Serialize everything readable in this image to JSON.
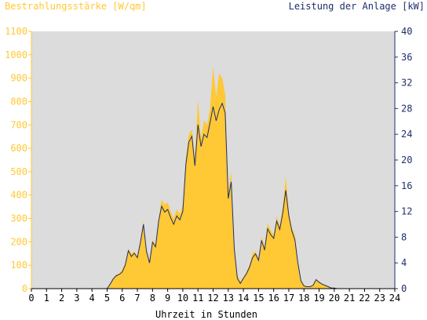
{
  "chart_data": {
    "type": "area",
    "title_left": "Bestrahlungsstärke [W/qm]",
    "title_right": "Leistung der Anlage [kW]",
    "xlabel": "Uhrzeit in Stunden",
    "x_ticks": [
      "0",
      "1",
      "2",
      "3",
      "4",
      "5",
      "6",
      "7",
      "8",
      "9",
      "10",
      "11",
      "12",
      "13",
      "14",
      "15",
      "16",
      "17",
      "18",
      "19",
      "20",
      "21",
      "22",
      "23",
      "24"
    ],
    "xlim": [
      0,
      24
    ],
    "y_left_ticks": [
      "0",
      "100",
      "200",
      "300",
      "400",
      "500",
      "600",
      "700",
      "800",
      "900",
      "1000",
      "1100"
    ],
    "y_left_lim": [
      0,
      1100
    ],
    "y_right_ticks": [
      "0",
      "4",
      "8",
      "12",
      "16",
      "20",
      "24",
      "28",
      "32",
      "36",
      "40"
    ],
    "y_right_lim": [
      0,
      40
    ],
    "colors": {
      "plot_background": "#dcdcdc",
      "irradiance_fill": "#ffc835",
      "power_line": "#1f2f6b",
      "left_axis_text": "#ffc835",
      "right_axis_text": "#1f2f6b"
    },
    "series": [
      {
        "axis": "left",
        "style": "area",
        "x": [
          0,
          5.0,
          5.2,
          5.4,
          5.6,
          5.8,
          6.0,
          6.2,
          6.4,
          6.6,
          6.8,
          7.0,
          7.2,
          7.4,
          7.6,
          7.8,
          8.0,
          8.2,
          8.4,
          8.6,
          8.8,
          9.0,
          9.2,
          9.4,
          9.6,
          9.8,
          10.0,
          10.2,
          10.4,
          10.6,
          10.8,
          11.0,
          11.2,
          11.4,
          11.6,
          11.8,
          12.0,
          12.2,
          12.4,
          12.6,
          12.8,
          13.0,
          13.2,
          13.4,
          13.6,
          13.8,
          14.0,
          14.2,
          14.4,
          14.6,
          14.8,
          15.0,
          15.2,
          15.4,
          15.6,
          15.8,
          16.0,
          16.2,
          16.4,
          16.6,
          16.8,
          17.0,
          17.2,
          17.4,
          17.6,
          17.8,
          18.0,
          18.2,
          18.4,
          18.6,
          18.8,
          19.0,
          19.2,
          19.4,
          19.6,
          19.8,
          20.0,
          20.2,
          20.4,
          20.6,
          24
        ],
        "y": [
          0,
          0,
          20,
          45,
          60,
          65,
          80,
          110,
          170,
          150,
          160,
          140,
          210,
          290,
          170,
          120,
          210,
          190,
          300,
          380,
          360,
          370,
          330,
          300,
          340,
          320,
          360,
          560,
          660,
          680,
          560,
          810,
          640,
          720,
          700,
          770,
          950,
          820,
          920,
          900,
          830,
          420,
          500,
          180,
          60,
          30,
          50,
          70,
          100,
          150,
          160,
          130,
          220,
          180,
          280,
          250,
          230,
          310,
          270,
          350,
          480,
          330,
          260,
          230,
          120,
          40,
          15,
          10,
          10,
          15,
          40,
          30,
          20,
          15,
          8,
          5,
          3,
          0,
          0,
          0,
          0
        ]
      },
      {
        "axis": "right",
        "style": "line",
        "x": [
          0,
          5.0,
          5.2,
          5.4,
          5.6,
          5.8,
          6.0,
          6.2,
          6.4,
          6.6,
          6.8,
          7.0,
          7.2,
          7.4,
          7.6,
          7.8,
          8.0,
          8.2,
          8.4,
          8.6,
          8.8,
          9.0,
          9.2,
          9.4,
          9.6,
          9.8,
          10.0,
          10.2,
          10.4,
          10.6,
          10.8,
          11.0,
          11.2,
          11.4,
          11.6,
          11.8,
          12.0,
          12.2,
          12.4,
          12.6,
          12.8,
          13.0,
          13.2,
          13.4,
          13.6,
          13.8,
          14.0,
          14.2,
          14.4,
          14.6,
          14.8,
          15.0,
          15.2,
          15.4,
          15.6,
          15.8,
          16.0,
          16.2,
          16.4,
          16.6,
          16.8,
          17.0,
          17.2,
          17.4,
          17.6,
          17.8,
          18.0,
          18.2,
          18.4,
          18.6,
          18.8,
          19.0,
          19.2,
          19.4,
          19.6,
          19.8,
          20.0,
          20.2,
          20.4,
          20.6,
          24
        ],
        "y": [
          0,
          0,
          0.7,
          1.5,
          2.0,
          2.2,
          2.6,
          3.7,
          5.9,
          5.0,
          5.5,
          4.8,
          7.2,
          10.0,
          5.8,
          4.0,
          7.2,
          6.5,
          10.5,
          12.8,
          11.9,
          12.3,
          11.0,
          10.0,
          11.3,
          10.7,
          12.0,
          19.3,
          22.8,
          23.7,
          19.1,
          25.5,
          22.1,
          24.0,
          23.5,
          25.8,
          28.3,
          26.1,
          27.8,
          28.8,
          27.3,
          14.0,
          16.6,
          6.2,
          1.6,
          0.8,
          1.6,
          2.3,
          3.3,
          4.8,
          5.4,
          4.4,
          7.5,
          6.0,
          9.3,
          8.4,
          7.8,
          10.5,
          9.2,
          11.7,
          15.3,
          11.3,
          9.0,
          7.6,
          4.0,
          1.2,
          0.4,
          0.3,
          0.3,
          0.5,
          1.4,
          1.0,
          0.7,
          0.5,
          0.3,
          0.1,
          0.1,
          0,
          0,
          0,
          0
        ]
      }
    ]
  }
}
